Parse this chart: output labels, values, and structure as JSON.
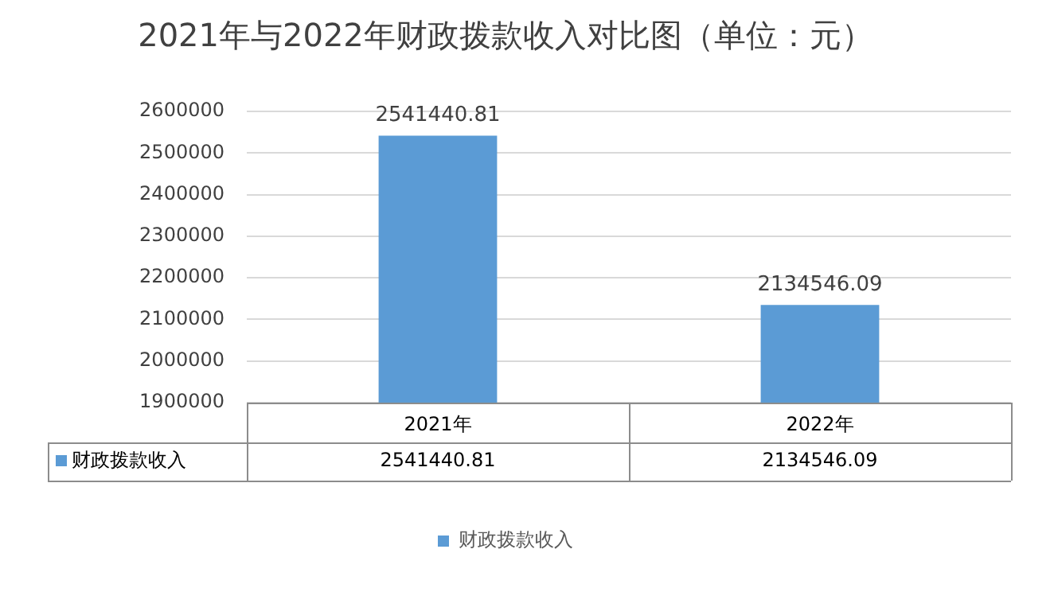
{
  "chart_data": {
    "type": "bar",
    "title": "2021年与2022年财政拨款收入对比图（单位：元）",
    "categories": [
      "2021年",
      "2022年"
    ],
    "series": [
      {
        "name": "财政拨款收入",
        "color": "#5b9bd5",
        "values": [
          2541440.81,
          2134546.09
        ],
        "value_labels": [
          "2541440.81",
          "2134546.09"
        ]
      }
    ],
    "ylim": [
      1900000,
      2600000
    ],
    "yticks": [
      1900000,
      2000000,
      2100000,
      2200000,
      2300000,
      2400000,
      2500000,
      2600000
    ],
    "grid": "y",
    "legend": "bottom",
    "data_labels": true
  }
}
